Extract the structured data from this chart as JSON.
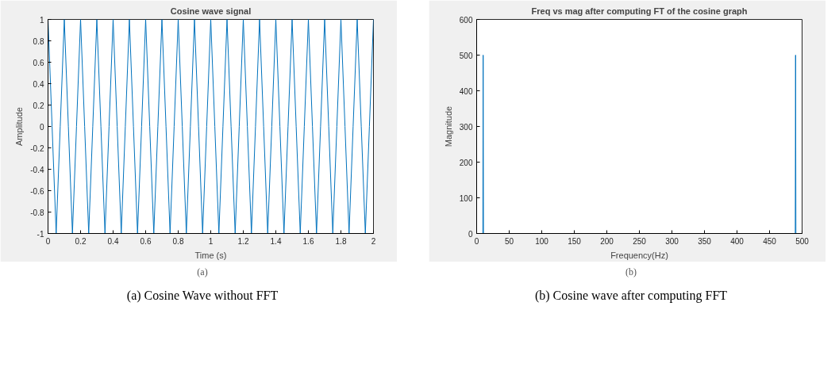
{
  "chart_data": [
    {
      "type": "line",
      "title": "Cosine wave signal",
      "xlabel": "Time (s)",
      "ylabel": "Amplitude",
      "color": "#0072bd",
      "x": [
        0,
        0.025,
        0.05,
        0.075,
        0.1,
        0.125,
        0.15,
        0.175,
        0.2,
        0.225,
        0.25,
        0.275,
        0.3,
        0.325,
        0.35,
        0.375,
        0.4,
        0.425,
        0.45,
        0.475,
        0.5,
        0.525,
        0.55,
        0.575,
        0.6,
        0.625,
        0.65,
        0.675,
        0.7,
        0.725,
        0.75,
        0.775,
        0.8,
        0.825,
        0.85,
        0.875,
        0.9,
        0.925,
        0.95,
        0.975,
        1,
        1.025,
        1.05,
        1.075,
        1.1,
        1.125,
        1.15,
        1.175,
        1.2,
        1.225,
        1.25,
        1.275,
        1.3,
        1.325,
        1.35,
        1.375,
        1.4,
        1.425,
        1.45,
        1.475,
        1.5,
        1.525,
        1.55,
        1.575,
        1.6,
        1.625,
        1.65,
        1.675,
        1.7,
        1.725,
        1.75,
        1.775,
        1.8,
        1.825,
        1.85,
        1.875,
        1.9,
        1.925,
        1.95,
        1.975,
        2
      ],
      "values": [
        1,
        0,
        -1,
        0,
        1,
        0,
        -1,
        0,
        1,
        0,
        -1,
        0,
        1,
        0,
        -1,
        0,
        1,
        0,
        -1,
        0,
        1,
        0,
        -1,
        0,
        1,
        0,
        -1,
        0,
        1,
        0,
        -1,
        0,
        1,
        0,
        -1,
        0,
        1,
        0,
        -1,
        0,
        1,
        0,
        -1,
        0,
        1,
        0,
        -1,
        0,
        1,
        0,
        -1,
        0,
        1,
        0,
        -1,
        0,
        1,
        0,
        -1,
        0,
        1,
        0,
        -1,
        0,
        1,
        0,
        -1,
        0,
        1,
        0,
        -1,
        0,
        1,
        0,
        -1,
        0,
        1,
        0,
        -1,
        0,
        1
      ],
      "xlim": [
        0,
        2
      ],
      "ylim": [
        -1,
        1
      ],
      "xticks": [
        0,
        0.2,
        0.4,
        0.6,
        0.8,
        1,
        1.2,
        1.4,
        1.6,
        1.8,
        2
      ],
      "yticks": [
        -1,
        -0.8,
        -0.6,
        -0.4,
        -0.2,
        0,
        0.2,
        0.4,
        0.6,
        0.8,
        1
      ],
      "grid": false,
      "annotations": [
        "(a)",
        "(a) Cosine Wave without FFT"
      ]
    },
    {
      "type": "line",
      "title": "Freq vs mag after computing FT of the cosine graph",
      "xlabel": "Frequency(Hz)",
      "ylabel": "Magnitude",
      "color": "#0072bd",
      "x": [
        0,
        9.5,
        10,
        10.5,
        489.5,
        490,
        490.5,
        499.5
      ],
      "values": [
        0,
        0,
        500,
        0,
        0,
        500,
        0,
        0
      ],
      "xlim": [
        0,
        500
      ],
      "ylim": [
        0,
        600
      ],
      "xticks": [
        0,
        50,
        100,
        150,
        200,
        250,
        300,
        350,
        400,
        450,
        500
      ],
      "yticks": [
        0,
        100,
        200,
        300,
        400,
        500,
        600
      ],
      "grid": false,
      "annotations": [
        "(b)",
        "(b) Cosine wave after computing FFT"
      ]
    }
  ]
}
